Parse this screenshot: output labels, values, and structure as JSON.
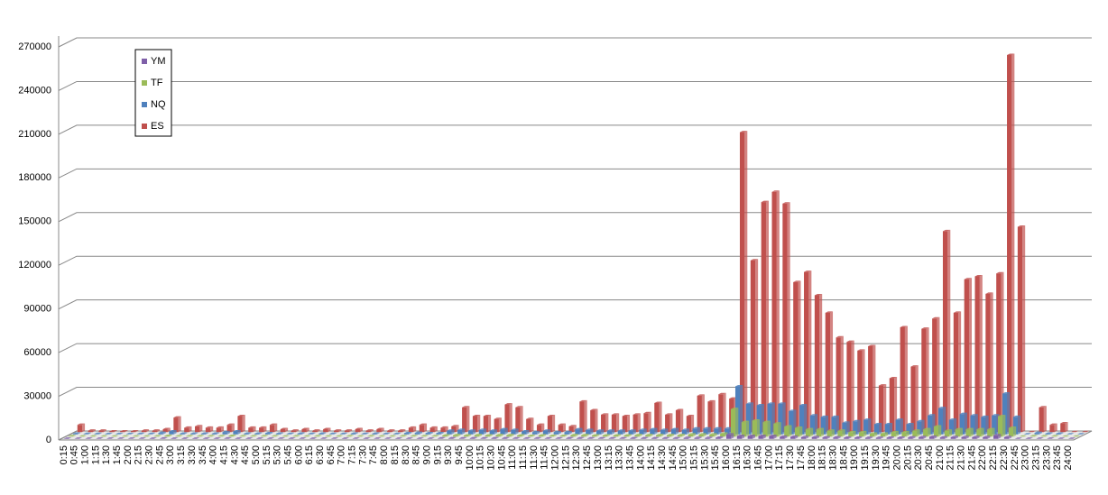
{
  "chart_data": {
    "type": "bar3d",
    "categories": [
      "0:15",
      "0:45",
      "1:00",
      "1:15",
      "1:30",
      "1:45",
      "2:00",
      "2:15",
      "2:30",
      "2:45",
      "3:00",
      "3:15",
      "3:30",
      "3:45",
      "4:00",
      "4:15",
      "4:30",
      "4:45",
      "5:00",
      "5:15",
      "5:30",
      "5:45",
      "6:00",
      "6:15",
      "6:30",
      "6:45",
      "7:00",
      "7:15",
      "7:30",
      "7:45",
      "8:00",
      "8:15",
      "8:30",
      "8:45",
      "9:00",
      "9:15",
      "9:30",
      "9:45",
      "10:00",
      "10:15",
      "10:30",
      "10:45",
      "11:00",
      "11:15",
      "11:30",
      "11:45",
      "12:00",
      "12:15",
      "12:30",
      "12:45",
      "13:00",
      "13:15",
      "13:30",
      "13:45",
      "14:00",
      "14:15",
      "14:30",
      "14:45",
      "15:00",
      "15:15",
      "15:30",
      "15:45",
      "16:00",
      "16:15",
      "16:30",
      "16:45",
      "17:00",
      "17:15",
      "17:30",
      "17:45",
      "18:00",
      "18:15",
      "18:30",
      "18:45",
      "19:00",
      "19:15",
      "19:30",
      "19:45",
      "20:00",
      "20:15",
      "20:30",
      "20:45",
      "21:00",
      "21:15",
      "21:30",
      "21:45",
      "22:00",
      "22:15",
      "22:30",
      "22:45",
      "23:00",
      "23:15",
      "23:30",
      "23:45",
      "24:00"
    ],
    "series": [
      {
        "name": "YM",
        "color": "#7f5fa8",
        "values": [
          100,
          50,
          50,
          50,
          50,
          50,
          50,
          50,
          100,
          200,
          100,
          100,
          100,
          100,
          100,
          200,
          100,
          100,
          100,
          100,
          50,
          100,
          50,
          100,
          50,
          50,
          100,
          50,
          100,
          50,
          50,
          100,
          100,
          100,
          100,
          300,
          400,
          300,
          400,
          300,
          400,
          400,
          300,
          200,
          300,
          200,
          200,
          400,
          400,
          300,
          300,
          300,
          300,
          400,
          400,
          400,
          400,
          400,
          600,
          600,
          600,
          800,
          3000,
          2000,
          2000,
          2000,
          2000,
          1500,
          1500,
          1200,
          1200,
          1000,
          1000,
          800,
          800,
          700,
          700,
          800,
          800,
          1000,
          1200,
          1500,
          1000,
          1200,
          1200,
          1200,
          1200,
          2500,
          1200,
          0,
          100,
          50,
          50,
          0,
          0
        ]
      },
      {
        "name": "TF",
        "color": "#9bbb59",
        "values": [
          300,
          100,
          100,
          100,
          100,
          100,
          100,
          100,
          200,
          500,
          200,
          200,
          200,
          200,
          300,
          500,
          200,
          200,
          300,
          200,
          100,
          200,
          100,
          200,
          100,
          100,
          200,
          100,
          200,
          100,
          100,
          300,
          300,
          300,
          300,
          800,
          1000,
          800,
          1000,
          800,
          1000,
          1000,
          800,
          500,
          800,
          500,
          500,
          1000,
          1000,
          800,
          800,
          800,
          800,
          1000,
          1000,
          1000,
          1000,
          1000,
          1500,
          1500,
          1500,
          2000,
          19000,
          10000,
          11000,
          10000,
          9000,
          7000,
          6000,
          5000,
          5000,
          4000,
          4000,
          3000,
          3000,
          2000,
          2000,
          3000,
          3000,
          4000,
          5000,
          7000,
          4000,
          5000,
          5000,
          5000,
          5000,
          14000,
          6000,
          0,
          300,
          200,
          200,
          0,
          0
        ]
      },
      {
        "name": "NQ",
        "color": "#4f81bd",
        "values": [
          500,
          300,
          300,
          200,
          200,
          200,
          300,
          300,
          1000,
          2000,
          500,
          500,
          500,
          500,
          1500,
          2000,
          500,
          500,
          800,
          500,
          300,
          500,
          300,
          500,
          300,
          300,
          500,
          300,
          500,
          300,
          300,
          800,
          1000,
          800,
          800,
          2500,
          3000,
          2500,
          3000,
          2500,
          3500,
          3000,
          2000,
          1500,
          2500,
          1500,
          1500,
          3500,
          3000,
          2500,
          2500,
          2500,
          2500,
          3000,
          3500,
          3000,
          3500,
          3000,
          4000,
          4000,
          4000,
          4000,
          33000,
          21000,
          20000,
          21000,
          21000,
          16000,
          20000,
          13000,
          12000,
          12000,
          8000,
          9000,
          10000,
          7000,
          7000,
          10000,
          7000,
          9000,
          13000,
          18000,
          10000,
          14000,
          13000,
          12000,
          13000,
          28000,
          12000,
          0,
          1000,
          500,
          500,
          0,
          0
        ]
      },
      {
        "name": "ES",
        "color": "#c0504d",
        "values": [
          5000,
          1000,
          1000,
          500,
          500,
          500,
          1000,
          1000,
          2000,
          10000,
          3000,
          4000,
          3000,
          3000,
          5000,
          11000,
          3000,
          3000,
          5000,
          2000,
          1000,
          2000,
          1000,
          2000,
          1000,
          1000,
          2000,
          1000,
          2000,
          1000,
          1000,
          3000,
          5000,
          3000,
          3000,
          4000,
          17000,
          11000,
          11000,
          9000,
          19000,
          17000,
          9000,
          5000,
          11000,
          5000,
          4000,
          21000,
          15000,
          12000,
          12000,
          11000,
          12000,
          13000,
          20000,
          12000,
          15000,
          11000,
          25000,
          21000,
          26000,
          23000,
          206000,
          118000,
          158000,
          165000,
          157000,
          103000,
          110000,
          94000,
          82000,
          65000,
          62000,
          56000,
          59000,
          32000,
          37000,
          72000,
          45000,
          71000,
          78000,
          138000,
          82000,
          105000,
          107000,
          95000,
          109000,
          259000,
          141000,
          0,
          17000,
          5000,
          6000,
          0,
          0
        ]
      }
    ],
    "ylim": [
      0,
      270000
    ],
    "yticks": [
      0,
      30000,
      60000,
      90000,
      120000,
      150000,
      180000,
      210000,
      240000,
      270000
    ],
    "grid": true,
    "legend": "top-left"
  }
}
